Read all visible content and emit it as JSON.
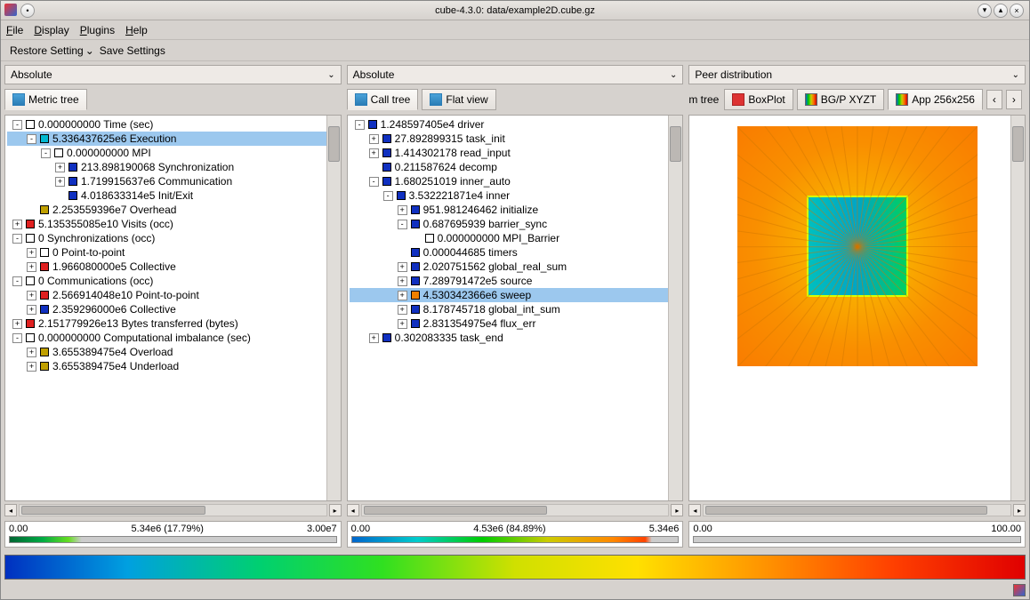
{
  "window": {
    "title": "cube-4.3.0: data/example2D.cube.gz"
  },
  "menu": {
    "file": "File",
    "display": "Display",
    "plugins": "Plugins",
    "help": "Help"
  },
  "toolbar": {
    "restore": "Restore Setting",
    "save": "Save Settings"
  },
  "combos": {
    "left": "Absolute",
    "mid": "Absolute",
    "right": "Peer distribution"
  },
  "tabs": {
    "left": [
      {
        "label": "Metric tree",
        "icon": "tree"
      }
    ],
    "mid": [
      {
        "label": "Call tree",
        "icon": "tree"
      },
      {
        "label": "Flat view",
        "icon": "tree"
      }
    ],
    "right_prefix": "m tree",
    "right": [
      {
        "label": "BoxPlot",
        "icon": "box"
      },
      {
        "label": "BG/P XYZT",
        "icon": "rainbow"
      },
      {
        "label": "App 256x256",
        "icon": "rainbow"
      }
    ]
  },
  "colors": {
    "white": "#ffffff",
    "blue": "#1030c0",
    "cyan": "#00b8d0",
    "red": "#e02020",
    "darkyellow": "#c0a000",
    "orange": "#f08000",
    "green": "#10a010"
  },
  "metricTree": [
    {
      "d": 0,
      "e": "-",
      "c": "white",
      "t": "0.000000000 Time (sec)"
    },
    {
      "d": 1,
      "e": "-",
      "c": "cyan",
      "t": "5.336437625e6 Execution",
      "sel": true
    },
    {
      "d": 2,
      "e": "-",
      "c": "white",
      "t": "0.000000000 MPI"
    },
    {
      "d": 3,
      "e": "+",
      "c": "blue",
      "t": "213.898190068 Synchronization"
    },
    {
      "d": 3,
      "e": "+",
      "c": "blue",
      "t": "1.719915637e6 Communication"
    },
    {
      "d": 3,
      "e": "",
      "c": "blue",
      "t": "4.018633314e5 Init/Exit"
    },
    {
      "d": 1,
      "e": "",
      "c": "darkyellow",
      "t": "2.253559396e7 Overhead"
    },
    {
      "d": 0,
      "e": "+",
      "c": "red",
      "t": "5.135355085e10 Visits (occ)"
    },
    {
      "d": 0,
      "e": "-",
      "c": "white",
      "t": "0 Synchronizations (occ)"
    },
    {
      "d": 1,
      "e": "+",
      "c": "white",
      "t": "0 Point-to-point"
    },
    {
      "d": 1,
      "e": "+",
      "c": "red",
      "t": "1.966080000e5 Collective"
    },
    {
      "d": 0,
      "e": "-",
      "c": "white",
      "t": "0 Communications (occ)"
    },
    {
      "d": 1,
      "e": "+",
      "c": "red",
      "t": "2.566914048e10 Point-to-point"
    },
    {
      "d": 1,
      "e": "+",
      "c": "blue",
      "t": "2.359296000e6 Collective"
    },
    {
      "d": 0,
      "e": "+",
      "c": "red",
      "t": "2.151779926e13 Bytes transferred (bytes)"
    },
    {
      "d": 0,
      "e": "-",
      "c": "white",
      "t": "0.000000000 Computational imbalance (sec)"
    },
    {
      "d": 1,
      "e": "+",
      "c": "darkyellow",
      "t": "3.655389475e4 Overload"
    },
    {
      "d": 1,
      "e": "+",
      "c": "darkyellow",
      "t": "3.655389475e4 Underload"
    }
  ],
  "callTree": [
    {
      "d": 0,
      "e": "-",
      "c": "blue",
      "t": "1.248597405e4 driver"
    },
    {
      "d": 1,
      "e": "+",
      "c": "blue",
      "t": "27.892899315 task_init"
    },
    {
      "d": 1,
      "e": "+",
      "c": "blue",
      "t": "1.414302178 read_input"
    },
    {
      "d": 1,
      "e": "",
      "c": "blue",
      "t": "0.211587624 decomp"
    },
    {
      "d": 1,
      "e": "-",
      "c": "blue",
      "t": "1.680251019 inner_auto"
    },
    {
      "d": 2,
      "e": "-",
      "c": "blue",
      "t": "3.532221871e4 inner"
    },
    {
      "d": 3,
      "e": "+",
      "c": "blue",
      "t": "951.981246462 initialize"
    },
    {
      "d": 3,
      "e": "-",
      "c": "blue",
      "t": "0.687695939 barrier_sync"
    },
    {
      "d": 4,
      "e": "",
      "c": "white",
      "t": "0.000000000 MPI_Barrier"
    },
    {
      "d": 3,
      "e": "",
      "c": "blue",
      "t": "0.000044685 timers"
    },
    {
      "d": 3,
      "e": "+",
      "c": "blue",
      "t": "2.020751562 global_real_sum"
    },
    {
      "d": 3,
      "e": "+",
      "c": "blue",
      "t": "7.289791472e5 source"
    },
    {
      "d": 3,
      "e": "+",
      "c": "orange",
      "t": "4.530342366e6 sweep",
      "sel": true
    },
    {
      "d": 3,
      "e": "+",
      "c": "blue",
      "t": "8.178745718 global_int_sum"
    },
    {
      "d": 3,
      "e": "+",
      "c": "blue",
      "t": "2.831354975e4 flux_err"
    },
    {
      "d": 1,
      "e": "+",
      "c": "blue",
      "t": "0.302083335 task_end"
    }
  ],
  "scales": {
    "left": {
      "lo": "0.00",
      "mid": "5.34e6 (17.79%)",
      "hi": "3.00e7",
      "grad": "linear-gradient(90deg,#063 0%,#0a4 10%,#6d2 18%,#ccc 22%,#ccc 100%)"
    },
    "mid": {
      "lo": "0.00",
      "mid": "4.53e6 (84.89%)",
      "hi": "5.34e6",
      "grad": "linear-gradient(90deg,#06c 0%,#0cc 20%,#0c0 40%,#cc0 60%,#f80 80%,#f40 90%,#ccc 92%,#ccc 100%)"
    },
    "right": {
      "lo": "0.00",
      "mid": "",
      "hi": "100.00",
      "grad": "#cccccc"
    }
  },
  "bigGradient": "linear-gradient(90deg,#0030c0 0%,#00a0e0 12%,#00d070 25%,#30e020 37%,#d0e000 50%,#ffe000 62%,#ff9000 75%,#ff4000 87%,#e00000 100%)"
}
